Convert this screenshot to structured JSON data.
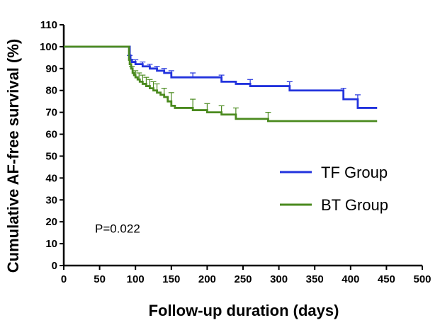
{
  "chart_data": {
    "type": "line",
    "step": true,
    "title": "",
    "xlabel": "Follow-up duration (days)",
    "ylabel": "Cumulative AF-free survival (%)",
    "xlim": [
      0,
      500
    ],
    "ylim": [
      0,
      110
    ],
    "xticks": [
      0,
      50,
      100,
      150,
      200,
      250,
      300,
      350,
      400,
      450,
      500
    ],
    "yticks": [
      0,
      10,
      20,
      30,
      40,
      50,
      60,
      70,
      80,
      90,
      100,
      110
    ],
    "grid": false,
    "legend_position": "right",
    "series": [
      {
        "name": "TF Group",
        "color": "#2233dd",
        "x": [
          0,
          90,
          92,
          93,
          95,
          100,
          105,
          110,
          120,
          130,
          140,
          150,
          180,
          220,
          240,
          260,
          315,
          390,
          410,
          437
        ],
        "y": [
          100,
          100,
          96,
          94,
          93,
          92,
          92,
          91,
          90,
          89,
          88,
          86,
          86,
          84,
          83,
          82,
          80,
          76,
          72,
          72
        ]
      },
      {
        "name": "BT Group",
        "color": "#4a8a1e",
        "x": [
          0,
          90,
          91,
          92,
          94,
          96,
          98,
          100,
          103,
          106,
          110,
          115,
          120,
          125,
          130,
          135,
          140,
          145,
          150,
          155,
          180,
          200,
          220,
          240,
          285,
          437
        ],
        "y": [
          100,
          100,
          94,
          92,
          90,
          88,
          87,
          86,
          85,
          84,
          83,
          82,
          81,
          80,
          79,
          78,
          77,
          75,
          73,
          72,
          71,
          70,
          69,
          67,
          66,
          66
        ]
      }
    ],
    "error_bars": {
      "TF Group": {
        "x": [
          92,
          100,
          110,
          120,
          130,
          140,
          150,
          180,
          220,
          260,
          315,
          390,
          410
        ],
        "upper": [
          96,
          94,
          93,
          92,
          91,
          90,
          89,
          88,
          87,
          85,
          84,
          81,
          78
        ]
      },
      "BT Group": {
        "x": [
          95,
          100,
          105,
          110,
          115,
          120,
          125,
          130,
          140,
          150,
          180,
          200,
          220,
          240,
          285
        ],
        "upper": [
          91,
          89,
          88,
          87,
          86,
          85,
          84,
          83,
          81,
          79,
          76,
          74,
          73,
          72,
          70
        ]
      }
    },
    "annotations": [
      {
        "text": "P=0.022",
        "x": 75,
        "y": 15
      }
    ]
  }
}
